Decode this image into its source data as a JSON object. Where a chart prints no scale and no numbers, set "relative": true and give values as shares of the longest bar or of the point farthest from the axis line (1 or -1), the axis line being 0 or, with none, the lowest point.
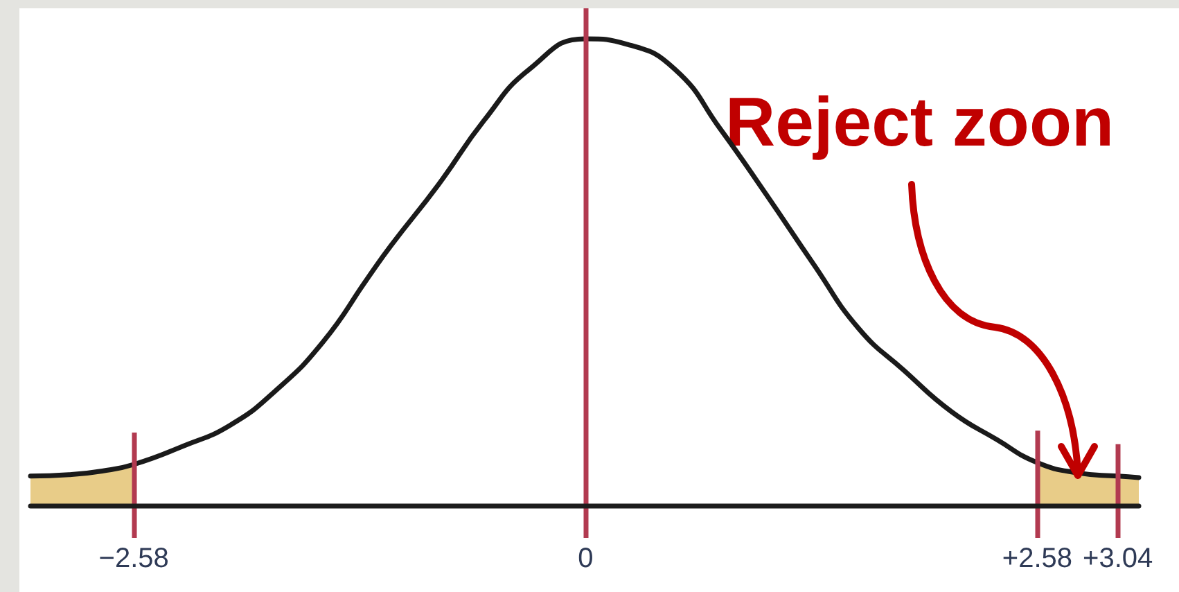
{
  "chart_data": {
    "type": "line",
    "relative": true,
    "marker": "none",
    "xlim": [
      -3.17,
      3.16
    ],
    "xticks": [
      {
        "value": -2.58,
        "label": "−2.58"
      },
      0,
      {
        "value": 2.58,
        "label": "+2.58"
      },
      {
        "value": 3.04,
        "label": "+3.04"
      }
    ],
    "series": [
      {
        "color": "#1a1a1a",
        "x": [
          -3.17,
          -2.95,
          -2.76,
          -2.58,
          -2.3,
          -2.03,
          -1.77,
          -1.5,
          -1.24,
          -1.11,
          -0.84,
          -0.58,
          -0.32,
          0,
          0.24,
          0.51,
          0.77,
          1.03,
          1.3,
          1.56,
          1.82,
          2.09,
          2.35,
          2.58,
          2.81,
          3.04,
          3.16
        ],
        "values": [
          0.064,
          0.067,
          0.075,
          0.089,
          0.128,
          0.173,
          0.247,
          0.351,
          0.49,
          0.558,
          0.688,
          0.825,
          0.935,
          1,
          0.988,
          0.935,
          0.807,
          0.668,
          0.519,
          0.38,
          0.29,
          0.202,
          0.142,
          0.093,
          0.071,
          0.064,
          0.061
        ]
      },
      {
        "type": "area",
        "color": "#e8cc88",
        "x": [
          -3.17,
          -2.95,
          -2.76,
          -2.58
        ],
        "values": [
          0.064,
          0.067,
          0.075,
          0.089
        ]
      },
      {
        "type": "area",
        "color": "#e8cc88",
        "x": [
          2.58,
          2.81,
          3.04,
          3.16
        ],
        "values": [
          0.093,
          0.071,
          0.064,
          0.061
        ]
      }
    ],
    "ref_lines": [
      {
        "axis": "x",
        "value": -2.58,
        "color": "#b23a50"
      },
      {
        "axis": "x",
        "value": 0,
        "color": "#b23a50"
      },
      {
        "axis": "x",
        "value": 2.58,
        "color": "#b23a50"
      },
      {
        "axis": "x",
        "value": 3.04,
        "color": "#b23a50"
      }
    ],
    "annotations": [
      {
        "text": "Reject zoon",
        "x": 2.81,
        "y": 0.06
      }
    ]
  }
}
